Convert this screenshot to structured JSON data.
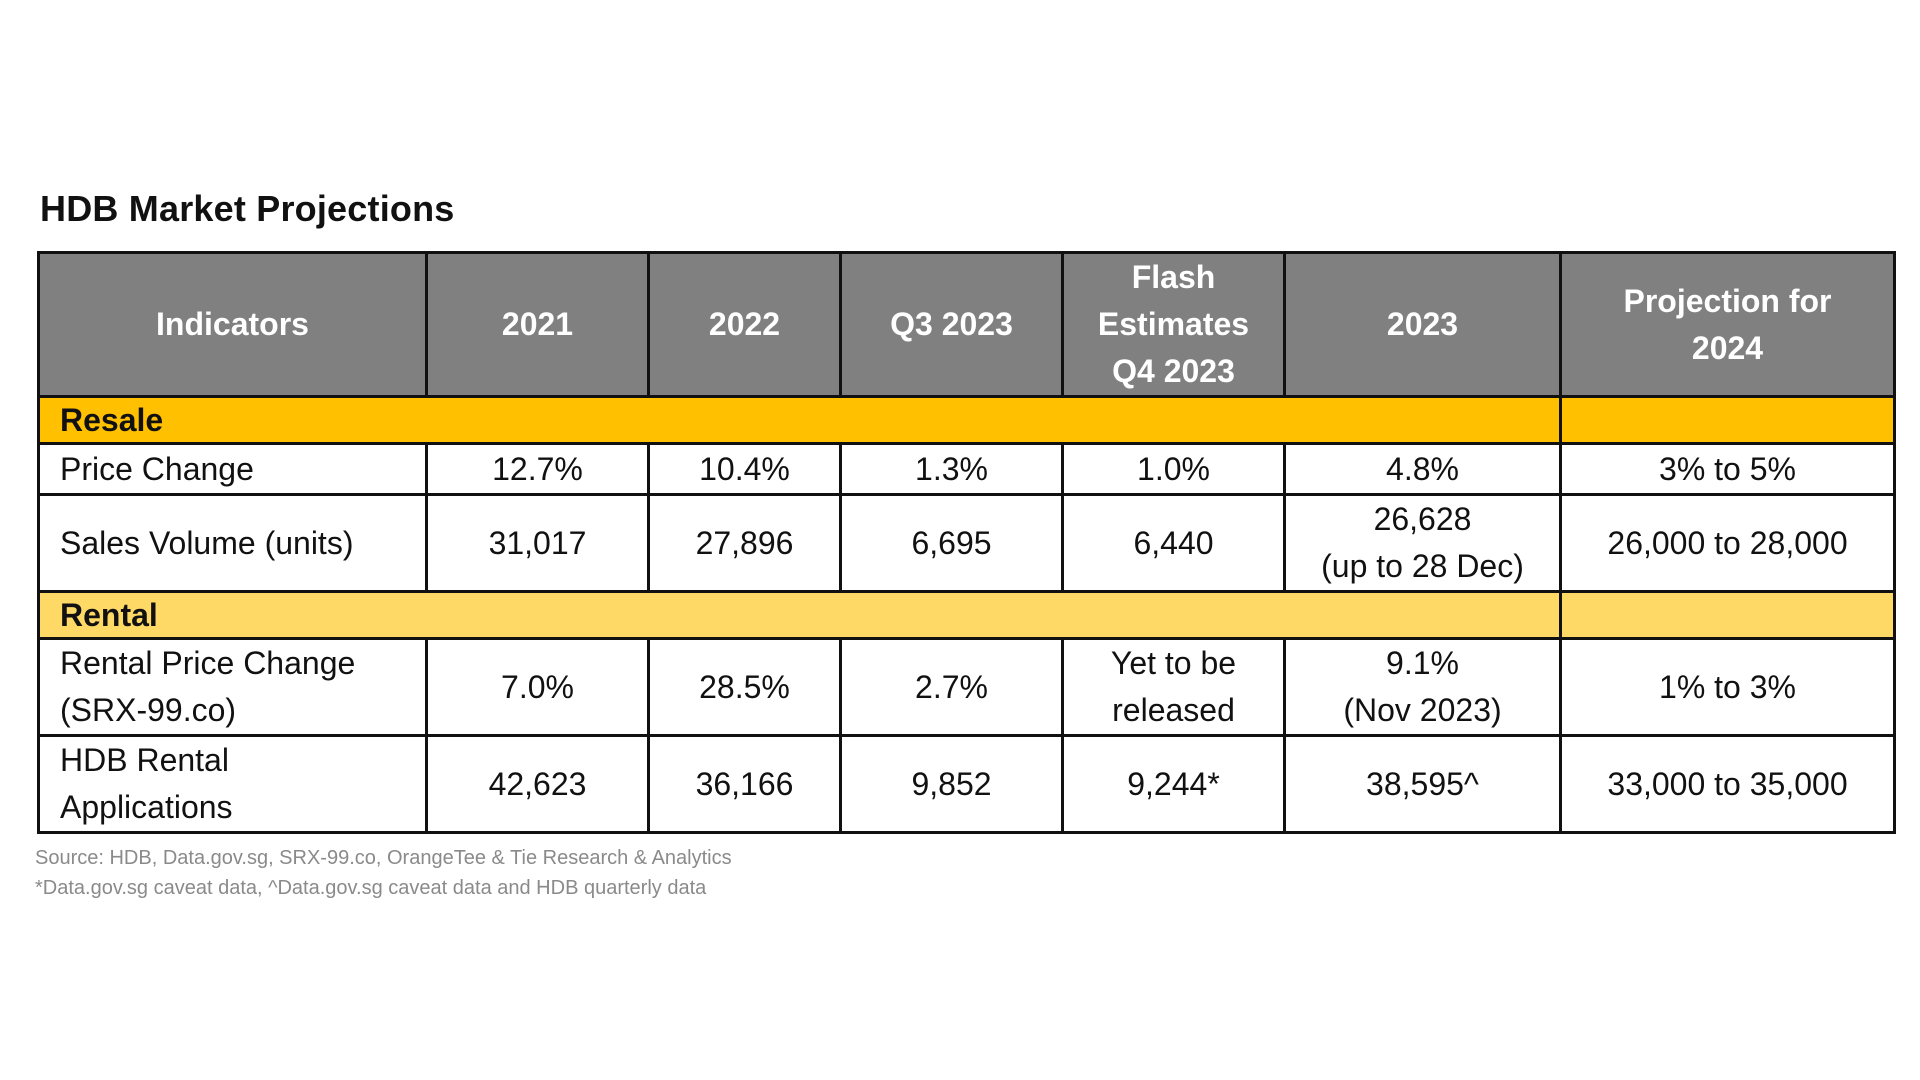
{
  "title": "HDB Market Projections",
  "table": {
    "headers": [
      [
        "Indicators"
      ],
      [
        "2021"
      ],
      [
        "2022"
      ],
      [
        "Q3 2023"
      ],
      [
        "Flash",
        "Estimates",
        "Q4 2023"
      ],
      [
        "2023"
      ],
      [
        "Projection for",
        "2024"
      ]
    ],
    "sections": [
      {
        "label": "Resale",
        "rows": [
          {
            "indicator": [
              "Price Change"
            ],
            "cells": [
              [
                "12.7%"
              ],
              [
                "10.4%"
              ],
              [
                "1.3%"
              ],
              [
                "1.0%"
              ],
              [
                "4.8%"
              ],
              [
                "3% to 5%"
              ]
            ]
          },
          {
            "indicator": [
              "Sales Volume (units)"
            ],
            "cells": [
              [
                "31,017"
              ],
              [
                "27,896"
              ],
              [
                "6,695"
              ],
              [
                "6,440"
              ],
              [
                "26,628",
                "(up to 28 Dec)"
              ],
              [
                "26,000 to 28,000"
              ]
            ]
          }
        ]
      },
      {
        "label": "Rental",
        "rows": [
          {
            "indicator": [
              "Rental Price Change",
              "(SRX-99.co)"
            ],
            "cells": [
              [
                "7.0%"
              ],
              [
                "28.5%"
              ],
              [
                "2.7%"
              ],
              [
                "Yet to be",
                "released"
              ],
              [
                "9.1%",
                "(Nov 2023)"
              ],
              [
                "1% to 3%"
              ]
            ]
          },
          {
            "indicator": [
              "HDB Rental",
              "Applications"
            ],
            "cells": [
              [
                "42,623"
              ],
              [
                "36,166"
              ],
              [
                "9,852"
              ],
              [
                "9,244*"
              ],
              [
                "38,595^"
              ],
              [
                "33,000 to 35,000"
              ]
            ]
          }
        ]
      }
    ]
  },
  "footnotes": {
    "source": "Source: HDB, Data.gov.sg, SRX-99.co, OrangeTee & Tie Research & Analytics",
    "note": "*Data.gov.sg caveat data, ^Data.gov.sg caveat data and HDB quarterly data"
  },
  "colors": {
    "header_bg": "#808080",
    "resale_band": "#ffc000",
    "rental_band": "#ffd966"
  }
}
